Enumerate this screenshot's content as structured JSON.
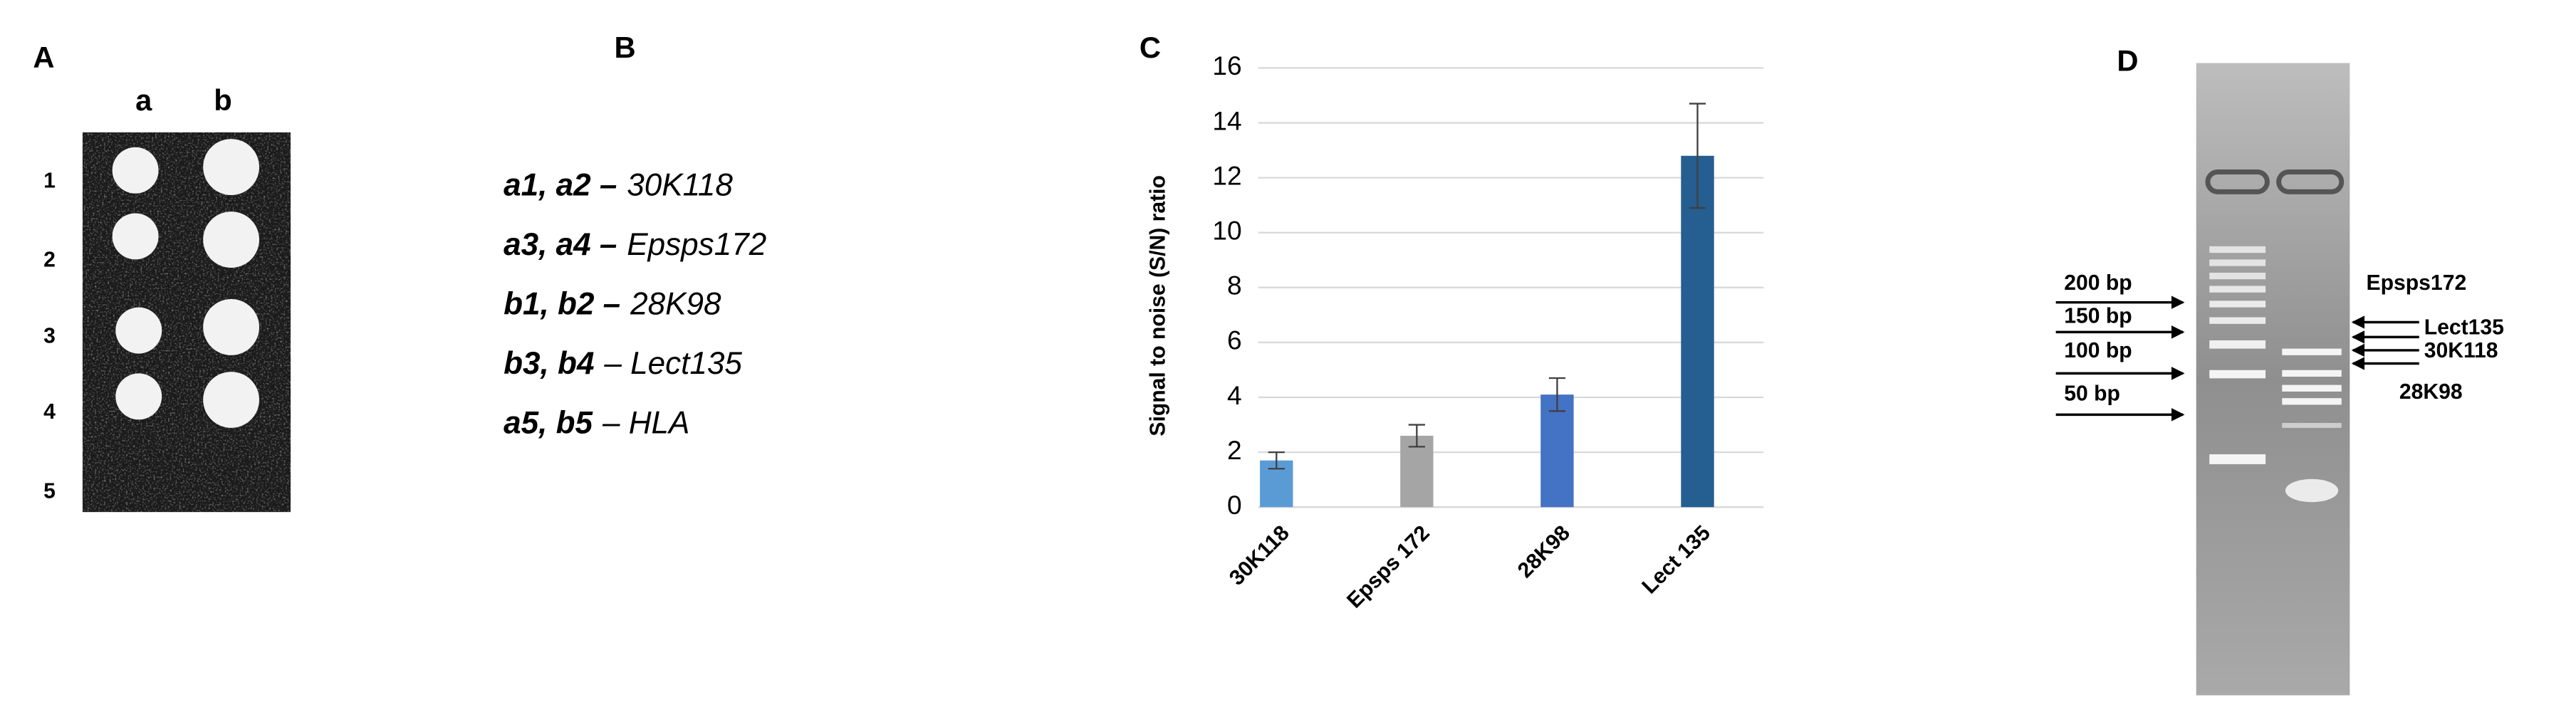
{
  "panel_a": {
    "label": "A",
    "columns": [
      "a",
      "b"
    ],
    "rows": [
      "1",
      "2",
      "3",
      "4",
      "5"
    ]
  },
  "panel_b": {
    "label": "B",
    "lines": [
      {
        "ids": "a1, a2 –",
        "target": "30K118"
      },
      {
        "ids": "a3, a4 –",
        "target": "Epsps172"
      },
      {
        "ids": "b1, b2 –",
        "target": "28K98"
      },
      {
        "ids": "b3, b4",
        "target": "– Lect135"
      },
      {
        "ids": "a5, b5",
        "target": "– HLA"
      }
    ]
  },
  "chart_data": {
    "type": "bar",
    "label": "C",
    "y_label": "Signal to noise (S/N) ratio",
    "categories": [
      "30K118",
      "Epsps 172",
      "28K98",
      "Lect 135"
    ],
    "values": [
      1.7,
      2.6,
      4.1,
      12.8
    ],
    "errors": [
      0.3,
      0.4,
      0.6,
      1.9
    ],
    "colors": [
      "#5b9bd5",
      "#a5a5a5",
      "#4472c4",
      "#255e91"
    ],
    "ylim": [
      0,
      16
    ],
    "yticks": [
      0,
      2,
      4,
      6,
      8,
      10,
      12,
      14,
      16
    ],
    "grid": true
  },
  "panel_d": {
    "label": "D",
    "ladder": [
      "200 bp",
      "150 bp",
      "100 bp",
      "50 bp"
    ],
    "products": [
      "Epsps172",
      "Lect135",
      "30K118",
      "28K98"
    ]
  }
}
